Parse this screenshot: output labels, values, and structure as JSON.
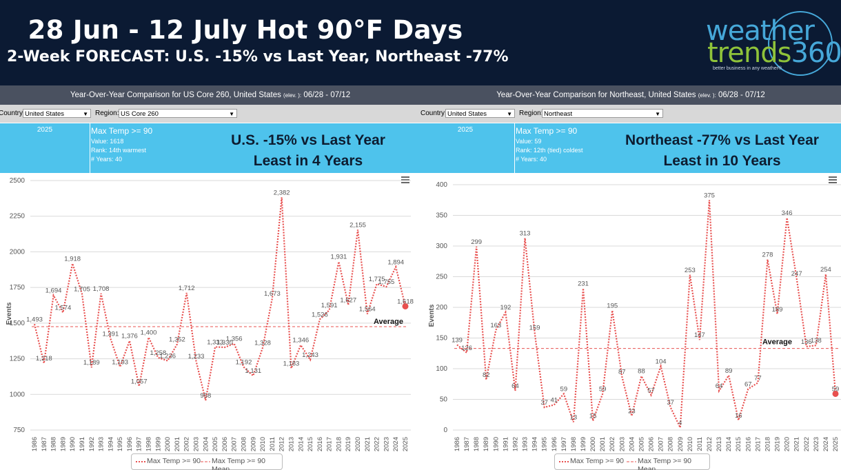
{
  "header": {
    "title": "28 Jun - 12 July Hot 90°F Days",
    "subtitle": "2-Week FORECAST:  U.S. -15% vs Last Year, Northeast -77%",
    "logo": {
      "line1": "weather",
      "line2a": "trends",
      "line2b": "360",
      "tagline": "better business in any weather®"
    }
  },
  "colors": {
    "header_bg": "#0b1a33",
    "info_bg": "#4ec3ec",
    "series": "#e8504f",
    "title_bar": "#4a5160"
  },
  "panels": [
    {
      "title_pre": "Year-Over-Year Comparison for US Core 260, United States",
      "title_elev": "(elev.  ):",
      "title_post": " 06/28 - 07/12",
      "country_label": "Country:",
      "country_value": "United States",
      "region_label": "Region:",
      "region_value": "US Core 260",
      "year": "2025",
      "metric": "Max Temp >= 90",
      "value_line": "Value: 1618",
      "rank_line": "Rank: 14th warmest",
      "years_line": "# Years: 40",
      "note_line1": "U.S. -15% vs Last Year",
      "note_line2": "Least in 4 Years",
      "average_label": "Average",
      "legend": {
        "series": "Max Temp >= 90",
        "mean": "Max Temp >= 90 Mean"
      }
    },
    {
      "title_pre": "Year-Over-Year Comparison for Northeast, United States",
      "title_elev": "(elev.  ):",
      "title_post": " 06/28 - 07/12",
      "country_label": "Country:",
      "country_value": "United States",
      "region_label": "Region:",
      "region_value": "Northeast",
      "year": "2025",
      "metric": "Max Temp >= 90",
      "value_line": "Value: 59",
      "rank_line": "Rank: 12th (tied) coldest",
      "years_line": "# Years: 40",
      "note_line1": "Northeast -77% vs Last Year",
      "note_line2": "Least in 10 Years",
      "average_label": "Average",
      "legend": {
        "series": "Max Temp >= 90",
        "mean": "Max Temp >= 90 Mean"
      }
    }
  ],
  "chart_data": [
    {
      "type": "line",
      "ylabel": "Events",
      "ylim": [
        750,
        2500
      ],
      "yticks": [
        750,
        1000,
        1250,
        1500,
        1750,
        2000,
        2250,
        2500
      ],
      "mean": 1475,
      "x": [
        1986,
        1987,
        1988,
        1989,
        1990,
        1991,
        1992,
        1993,
        1994,
        1995,
        1996,
        1997,
        1998,
        1999,
        2000,
        2001,
        2002,
        2003,
        2004,
        2005,
        2006,
        2007,
        2008,
        2009,
        2010,
        2011,
        2012,
        2013,
        2014,
        2015,
        2016,
        2017,
        2018,
        2019,
        2020,
        2021,
        2022,
        2023,
        2024,
        2025
      ],
      "values": [
        1493,
        1218,
        1694,
        1574,
        1918,
        1705,
        1189,
        1708,
        1391,
        1193,
        1376,
        1057,
        1400,
        1258,
        1236,
        1352,
        1712,
        1233,
        958,
        1333,
        1330,
        1356,
        1192,
        1131,
        1328,
        1673,
        2382,
        1183,
        1346,
        1243,
        1526,
        1591,
        1931,
        1627,
        2155,
        1564,
        1775,
        1755,
        1894,
        1618
      ],
      "labels": [
        "1,493",
        "1,218",
        "1,694",
        "1,574",
        "1,918",
        "1,705",
        "1,189",
        "1,708",
        "1,391",
        "1,193",
        "1,376",
        "1,057",
        "1,400",
        "1,258",
        "1,236",
        "1,352",
        "1,712",
        "1,233",
        "958",
        "1,333",
        "1,330",
        "1,356",
        "1,192",
        "1,131",
        "1,328",
        "1,673",
        "2,382",
        "1,183",
        "1,346",
        "1,243",
        "1,526",
        "1,591",
        "1,931",
        "1,627",
        "2,155",
        "1,564",
        "1,775",
        "1,755",
        "1,894",
        "1,618"
      ],
      "series": [
        {
          "name": "Max Temp >= 90"
        },
        {
          "name": "Max Temp >= 90 Mean"
        }
      ],
      "legend": "bottom",
      "grid": true
    },
    {
      "type": "line",
      "ylabel": "Events",
      "ylim": [
        0,
        400
      ],
      "yticks": [
        0,
        50,
        100,
        150,
        200,
        250,
        300,
        350,
        400
      ],
      "mean": 133,
      "x": [
        1986,
        1987,
        1988,
        1989,
        1990,
        1991,
        1992,
        1993,
        1994,
        1995,
        1996,
        1997,
        1998,
        1999,
        2000,
        2001,
        2002,
        2003,
        2004,
        2005,
        2006,
        2007,
        2008,
        2009,
        2010,
        2011,
        2012,
        2013,
        2014,
        2015,
        2016,
        2017,
        2018,
        2019,
        2020,
        2021,
        2022,
        2023,
        2024,
        2025
      ],
      "values": [
        139,
        126,
        299,
        82,
        163,
        192,
        64,
        313,
        159,
        37,
        41,
        59,
        13,
        231,
        15,
        59,
        195,
        87,
        23,
        88,
        57,
        104,
        37,
        4,
        253,
        147,
        375,
        64,
        89,
        16,
        67,
        77,
        278,
        189,
        346,
        247,
        136,
        138,
        254,
        59
      ],
      "labels": [
        "139",
        "126",
        "299",
        "82",
        "163",
        "192",
        "64",
        "313",
        "159",
        "37",
        "41",
        "59",
        "13",
        "231",
        "15",
        "59",
        "195",
        "87",
        "23",
        "88",
        "57",
        "104",
        "37",
        "4",
        "253",
        "147",
        "375",
        "64",
        "89",
        "16",
        "67",
        "77",
        "278",
        "189",
        "346",
        "247",
        "136",
        "138",
        "254",
        "59"
      ],
      "series": [
        {
          "name": "Max Temp >= 90"
        },
        {
          "name": "Max Temp >= 90 Mean"
        }
      ],
      "legend": "bottom",
      "grid": true
    }
  ]
}
